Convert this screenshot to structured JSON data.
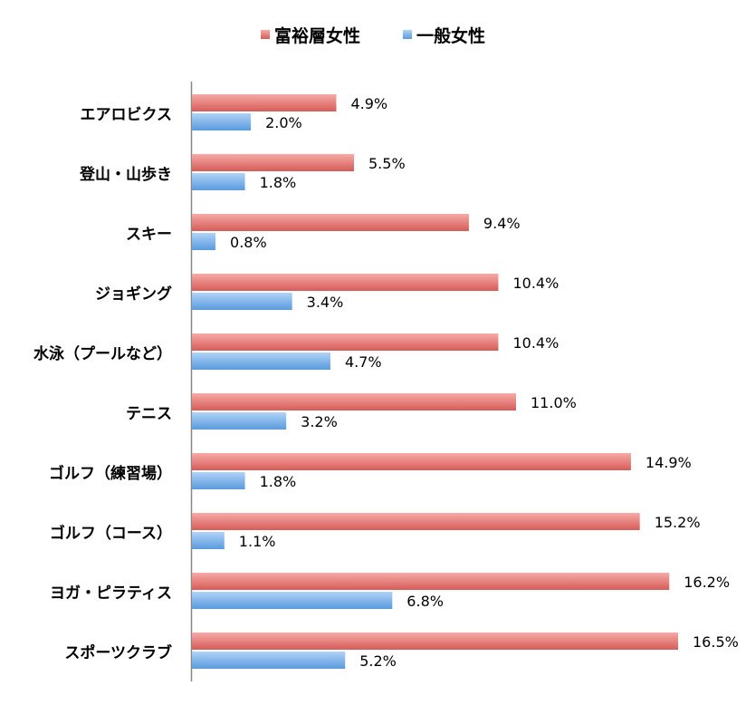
{
  "chart_data": {
    "type": "bar",
    "orientation": "horizontal",
    "categories": [
      "エアロビクス",
      "登山・山歩き",
      "スキー",
      "ジョギング",
      "水泳（プールなど）",
      "テニス",
      "ゴルフ（練習場）",
      "ゴルフ（コース）",
      "ヨガ・ピラティス",
      "スポーツクラブ"
    ],
    "series": [
      {
        "name": "富裕層女性",
        "color": "#e06b67",
        "values": [
          4.9,
          5.5,
          9.4,
          10.4,
          10.4,
          11.0,
          14.9,
          15.2,
          16.2,
          16.5
        ],
        "labels": [
          "4.9%",
          "5.5%",
          "9.4%",
          "10.4%",
          "10.4%",
          "11.0%",
          "14.9%",
          "15.2%",
          "16.2%",
          "16.5%"
        ]
      },
      {
        "name": "一般女性",
        "color": "#6aa6e6",
        "values": [
          2.0,
          1.8,
          0.8,
          3.4,
          4.7,
          3.2,
          1.8,
          1.1,
          6.8,
          5.2
        ],
        "labels": [
          "2.0%",
          "1.8%",
          "0.8%",
          "3.4%",
          "4.7%",
          "3.2%",
          "1.8%",
          "1.1%",
          "6.8%",
          "5.2%"
        ]
      }
    ],
    "xlim": [
      0,
      16.5
    ],
    "grid": false,
    "legend_position": "top"
  }
}
